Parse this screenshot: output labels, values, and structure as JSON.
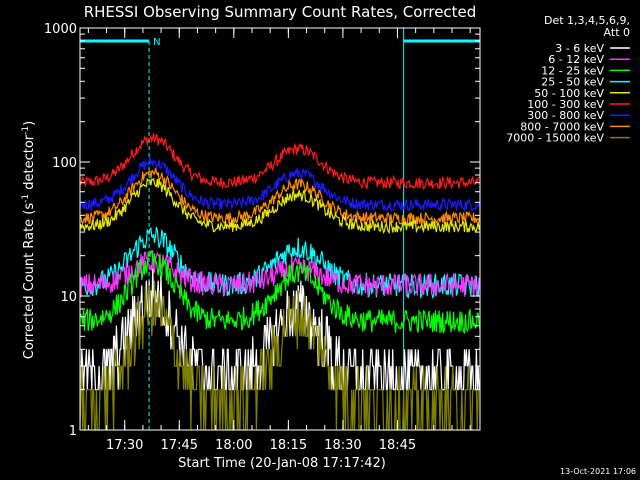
{
  "footer_timestamp": "13-Oct-2021 17:06",
  "chart_data": {
    "type": "line",
    "title": "RHESSI Observing Summary Count Rates, Corrected",
    "xlabel": "Start Time (20-Jan-08 17:17:42)",
    "ylabel_prefix": "Corrected Count Rate (s",
    "ylabel_sup1": "-1",
    "ylabel_mid": " detector",
    "ylabel_sup2": "-1",
    "ylabel_suffix": ")",
    "x_ticks": [
      "17:30",
      "17:45",
      "18:00",
      "18:15",
      "18:30",
      "18:45"
    ],
    "y_ticks": [
      "1",
      "10",
      "100",
      "1000"
    ],
    "y_scale": "log",
    "ylim": [
      1,
      1000
    ],
    "xlim_minutes_after_17_17_42": [
      0,
      110
    ],
    "legend_header": [
      "Det 1,3,4,5,6,9,",
      "Att 0"
    ],
    "legend_placement": "right",
    "night_marker": "N",
    "series": [
      {
        "name": "3 - 6 keV",
        "color": "#ffffff"
      },
      {
        "name": "6 - 12 keV",
        "color": "#ff33ff"
      },
      {
        "name": "12 - 25 keV",
        "color": "#00ff00"
      },
      {
        "name": "25 - 50 keV",
        "color": "#00ffff"
      },
      {
        "name": "50 - 100 keV",
        "color": "#e8e800"
      },
      {
        "name": "100 - 300 keV",
        "color": "#ff1a1a"
      },
      {
        "name": "300 - 800 keV",
        "color": "#1a1aff"
      },
      {
        "name": "800 - 7000 keV",
        "color": "#ff8c00"
      },
      {
        "name": "7000 - 15000 keV",
        "color": "#808000"
      }
    ],
    "plotted_curves": [
      {
        "series": "100 - 300 keV",
        "base": 70,
        "peaks": [
          150,
          125
        ]
      },
      {
        "series": "300 - 800 keV",
        "base": 48,
        "peaks": [
          100,
          82
        ]
      },
      {
        "series": "800 - 7000 keV",
        "base": 38,
        "peaks": [
          83,
          68
        ]
      },
      {
        "series": "50 - 100 keV",
        "base": 33,
        "peaks": [
          70,
          57
        ]
      },
      {
        "series": "25 - 50 keV",
        "base": 12,
        "peaks": [
          28,
          23
        ]
      },
      {
        "series": "6 - 12 keV",
        "base": 12,
        "peaks": [
          18,
          16
        ]
      },
      {
        "series": "12 - 25 keV",
        "base": 6.5,
        "peaks": [
          18,
          15
        ]
      },
      {
        "series": "3 - 6 keV",
        "base": 2.5,
        "peaks": [
          10,
          8
        ]
      },
      {
        "series": "7000 - 15000 keV",
        "base": 1.6,
        "peaks": [
          8,
          7
        ]
      }
    ],
    "peak_times_minutes": [
      20,
      60
    ],
    "night_intervals_minutes": [
      [
        0,
        19
      ],
      [
        89,
        110
      ]
    ]
  }
}
